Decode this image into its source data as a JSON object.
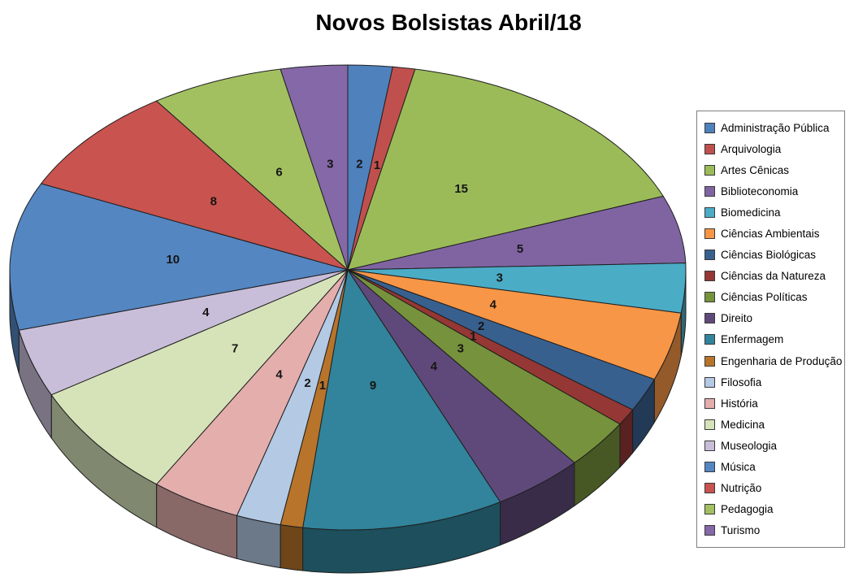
{
  "page": {
    "background": "#ffffff"
  },
  "chart_data": {
    "type": "pie",
    "style": "3d-pie",
    "title": "Novos Bolsistas Abril/18",
    "legend_position": "right",
    "data_labels": "value",
    "direction": "clockwise",
    "start_angle_deg": 0,
    "categories": [
      "Administração Pública",
      "Arquivologia",
      "Artes Cênicas",
      "Biblioteconomia",
      "Biomedicina",
      "Ciências Ambientais",
      "Ciências Biológicas",
      "Ciências da Natureza",
      "Ciências Políticas",
      "Direito",
      "Enfermagem",
      "Engenharia de Produção",
      "Filosofia",
      "História",
      "Medicina",
      "Museologia",
      "Música",
      "Nutrição",
      "Pedagogia",
      "Turismo"
    ],
    "values": [
      2,
      1,
      15,
      5,
      3,
      4,
      2,
      1,
      3,
      4,
      9,
      1,
      2,
      4,
      7,
      4,
      10,
      8,
      6,
      3
    ],
    "colors": [
      "#4F81BD",
      "#C0504D",
      "#9BBB59",
      "#8064A2",
      "#4BACC6",
      "#F79646",
      "#38608F",
      "#953734",
      "#76923C",
      "#5F497A",
      "#31849B",
      "#B8742A",
      "#B3C9E4",
      "#E4AEAD",
      "#D6E3B9",
      "#C9BED9",
      "#5486C2",
      "#C9534F",
      "#A3C061",
      "#8568A7"
    ],
    "label_color": "#151515",
    "outline_color": "#1F1F1F"
  }
}
